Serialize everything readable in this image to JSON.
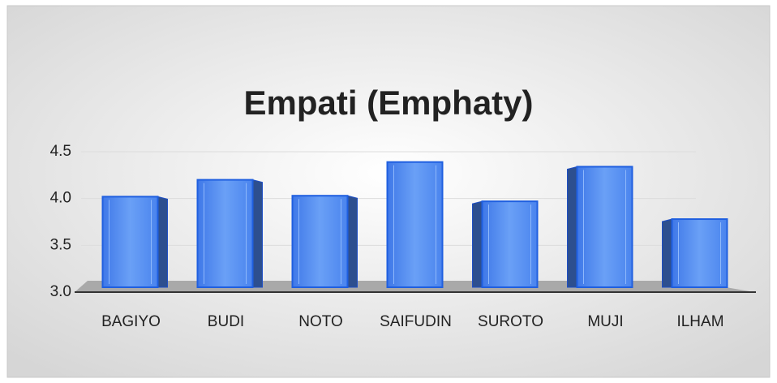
{
  "chart_data": {
    "type": "bar",
    "title": "Empati (Emphaty)",
    "categories": [
      "BAGIYO",
      "BUDI",
      "NOTO",
      "SAIFUDIN",
      "SUROTO",
      "MUJI",
      "ILHAM"
    ],
    "values": [
      4.02,
      4.2,
      4.03,
      4.39,
      3.97,
      4.34,
      3.78
    ],
    "color": "#4a86f0",
    "ylim": [
      3.0,
      4.5
    ],
    "yticks": [
      {
        "value": 3.0,
        "label": "3.0"
      },
      {
        "value": 3.5,
        "label": "3.5"
      },
      {
        "value": 4.0,
        "label": "4.0"
      },
      {
        "value": 4.5,
        "label": "4.5"
      }
    ],
    "grid": true
  }
}
